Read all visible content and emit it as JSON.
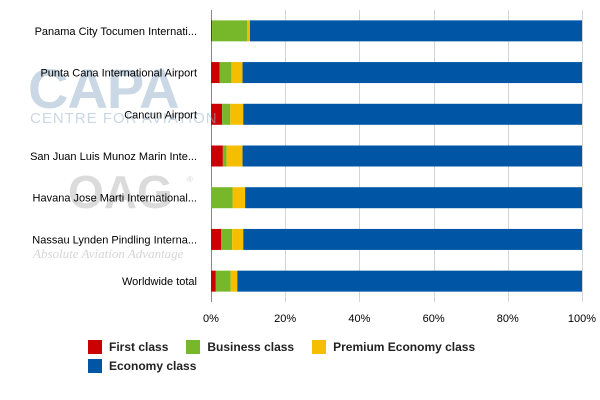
{
  "watermarks": {
    "capa": {
      "logo_text": "CAPA",
      "subtitle": "CENTRE FOR AVIATION"
    },
    "oag": {
      "logo_text": "OAG",
      "registered": "®",
      "subtitle": "Absolute Aviation Advantage"
    }
  },
  "chart_data": {
    "type": "bar",
    "orientation": "horizontal",
    "stacked": true,
    "percent_stacked": true,
    "categories": [
      "Panama City Tocumen Internati...",
      "Punta Cana International Airport",
      "Cancun Airport",
      "San Juan Luis Munoz Marin Inte...",
      "Havana Jose Marti International...",
      "Nassau Lynden Pindling Interna...",
      "Worldwide total"
    ],
    "series": [
      {
        "name": "First class",
        "color": "#cc0000",
        "values": [
          0.3,
          2.3,
          3.0,
          3.2,
          0.0,
          2.7,
          1.3
        ]
      },
      {
        "name": "Business class",
        "color": "#77b82a",
        "values": [
          9.5,
          3.2,
          2.2,
          1.0,
          5.8,
          3.0,
          4.0
        ]
      },
      {
        "name": "Premium Economy class",
        "color": "#f5be00",
        "values": [
          0.7,
          3.0,
          3.5,
          4.3,
          3.4,
          3.0,
          1.8
        ]
      },
      {
        "name": "Economy class",
        "color": "#0055a5",
        "values": [
          89.5,
          91.5,
          91.3,
          91.5,
          90.8,
          91.3,
          92.9
        ]
      }
    ],
    "xaxis": {
      "ticks": [
        "0%",
        "20%",
        "40%",
        "60%",
        "80%",
        "100%"
      ],
      "tick_values": [
        0,
        20,
        40,
        60,
        80,
        100
      ],
      "range": [
        0,
        100
      ]
    },
    "grid": true,
    "legend": {
      "position": "bottom"
    },
    "title": "",
    "xlabel": "",
    "ylabel": ""
  }
}
